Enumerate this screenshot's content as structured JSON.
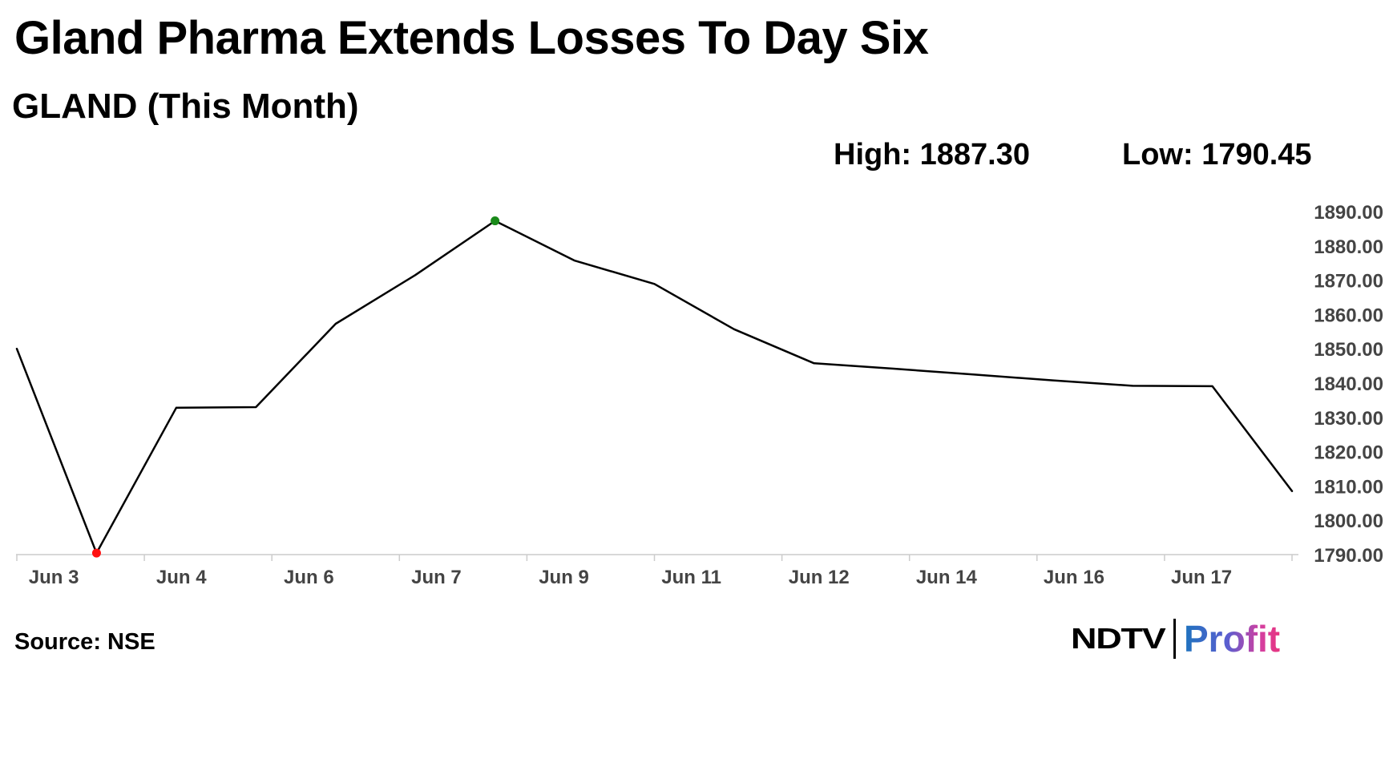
{
  "header": {
    "title": "Gland Pharma Extends Losses To Day Six",
    "subtitle": "GLAND (This Month)"
  },
  "stats": {
    "high": "High: 1887.30",
    "low": "Low: 1790.45"
  },
  "footer": {
    "source": "Source: NSE",
    "logo_left": "NDTV",
    "logo_right": "Profit"
  },
  "colors": {
    "line": "#000000",
    "high_marker": "#1a8a1a",
    "low_marker": "#ff1010",
    "axis": "#cccccc",
    "tick_label": "#444444"
  },
  "chart_data": {
    "type": "line",
    "title": "GLAND (This Month)",
    "xlabel": "",
    "ylabel": "",
    "ylim": [
      1790,
      1890
    ],
    "yticks": [
      1790,
      1800,
      1810,
      1820,
      1830,
      1840,
      1850,
      1860,
      1870,
      1880,
      1890
    ],
    "ytick_labels": [
      "1790.00",
      "1800.00",
      "1810.00",
      "1820.00",
      "1830.00",
      "1840.00",
      "1850.00",
      "1860.00",
      "1870.00",
      "1880.00",
      "1890.00"
    ],
    "xtick_labels": [
      "Jun 3",
      "Jun 4",
      "Jun 6",
      "Jun 7",
      "Jun 9",
      "Jun 11",
      "Jun 12",
      "Jun 14",
      "Jun 16",
      "Jun 17"
    ],
    "x_count": 17,
    "series": [
      {
        "name": "GLAND",
        "values": [
          1850.0,
          1790.45,
          1832.8,
          1833.0,
          1857.3,
          1871.5,
          1887.3,
          1875.7,
          1868.9,
          1855.7,
          1845.8,
          1844.2,
          1842.5,
          1840.8,
          1839.2,
          1839.1,
          1808.5
        ]
      }
    ],
    "markers": {
      "high_index": 6,
      "low_index": 1
    },
    "grid": false,
    "legend": "none"
  }
}
